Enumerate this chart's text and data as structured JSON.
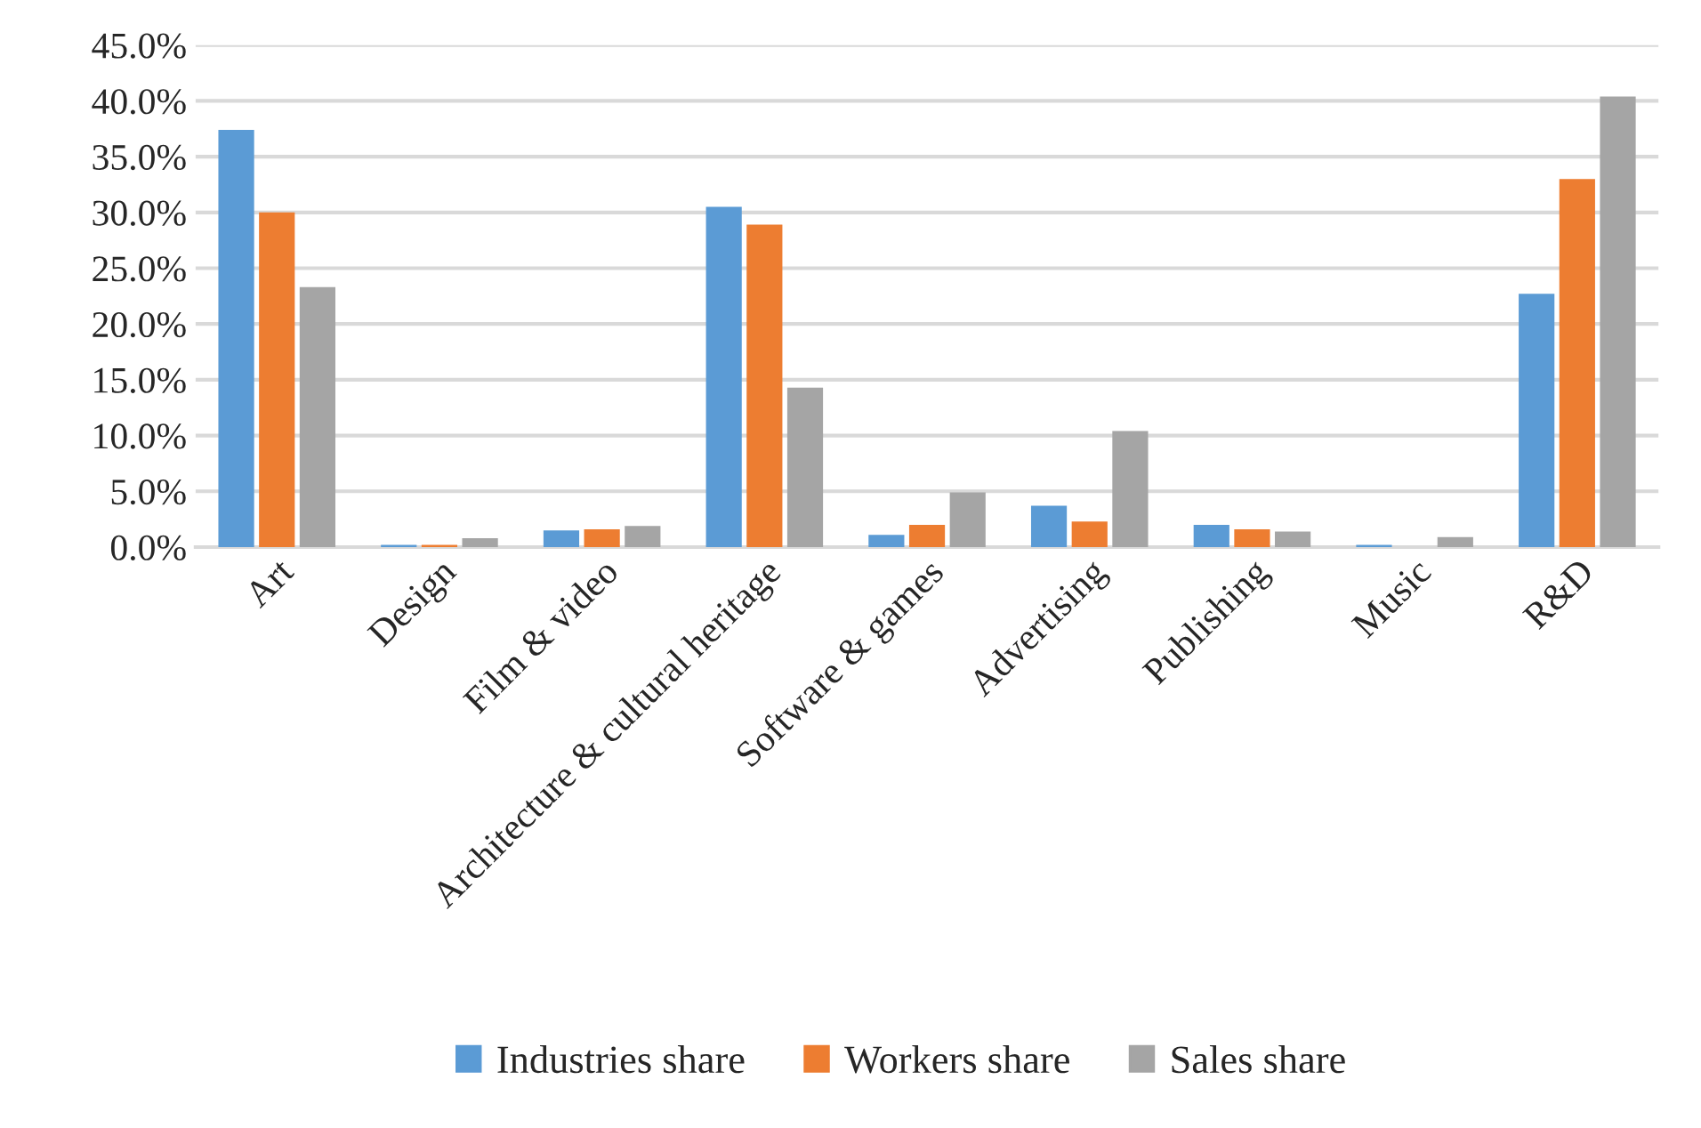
{
  "chart_data": {
    "type": "bar",
    "categories": [
      "Art",
      "Design",
      "Film & video",
      "Architecture & cultural heritage",
      "Software & games",
      "Advertising",
      "Publishing",
      "Music",
      "R&D"
    ],
    "series": [
      {
        "name": "Industries share",
        "color": "#5b9bd5",
        "values": [
          37.4,
          0.2,
          1.5,
          30.5,
          1.1,
          3.7,
          2.0,
          0.2,
          22.7
        ]
      },
      {
        "name": "Workers share",
        "color": "#ed7d31",
        "values": [
          30.0,
          0.2,
          1.6,
          28.9,
          2.0,
          2.3,
          1.6,
          null,
          33.0
        ]
      },
      {
        "name": "Sales share",
        "color": "#a5a5a5",
        "values": [
          23.3,
          0.8,
          1.9,
          14.3,
          4.9,
          10.4,
          1.4,
          0.9,
          40.4
        ]
      }
    ],
    "ylim": [
      0,
      45
    ],
    "yticks": [
      {
        "value": 0,
        "label": "0.0%"
      },
      {
        "value": 5,
        "label": "5.0%"
      },
      {
        "value": 10,
        "label": "10.0%"
      },
      {
        "value": 15,
        "label": "15.0%"
      },
      {
        "value": 20,
        "label": "20.0%"
      },
      {
        "value": 25,
        "label": "25.0%"
      },
      {
        "value": 30,
        "label": "30.0%"
      },
      {
        "value": 35,
        "label": "35.0%"
      },
      {
        "value": 40,
        "label": "40.0%"
      },
      {
        "value": 45,
        "label": "45.0%"
      }
    ],
    "grid": "y",
    "legend": "bottom"
  }
}
